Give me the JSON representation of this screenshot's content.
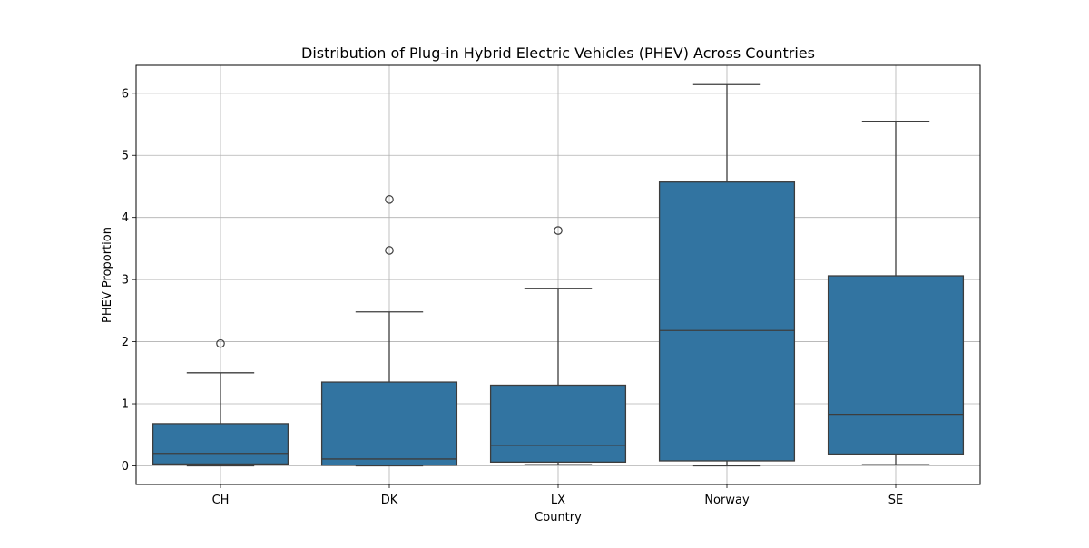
{
  "chart_data": {
    "type": "box",
    "title": "Distribution of Plug-in Hybrid Electric Vehicles (PHEV) Across Countries",
    "xlabel": "Country",
    "ylabel": "PHEV Proportion",
    "categories": [
      "CH",
      "DK",
      "LX",
      "Norway",
      "SE"
    ],
    "ylim": [
      -0.3,
      6.45
    ],
    "yticks": [
      0,
      1,
      2,
      3,
      4,
      5,
      6
    ],
    "grid": true,
    "box_color": "#3274a1",
    "edge_color": "#3d3d3d",
    "boxes": [
      {
        "category": "CH",
        "whisker_low": 0.0,
        "q1": 0.03,
        "median": 0.2,
        "q3": 0.68,
        "whisker_high": 1.5,
        "outliers": [
          1.97
        ]
      },
      {
        "category": "DK",
        "whisker_low": 0.0,
        "q1": 0.01,
        "median": 0.11,
        "q3": 1.35,
        "whisker_high": 2.48,
        "outliers": [
          3.47,
          4.29
        ]
      },
      {
        "category": "LX",
        "whisker_low": 0.02,
        "q1": 0.06,
        "median": 0.33,
        "q3": 1.3,
        "whisker_high": 2.86,
        "outliers": [
          3.79
        ]
      },
      {
        "category": "Norway",
        "whisker_low": 0.0,
        "q1": 0.08,
        "median": 2.18,
        "q3": 4.57,
        "whisker_high": 6.14,
        "outliers": []
      },
      {
        "category": "SE",
        "whisker_low": 0.02,
        "q1": 0.19,
        "median": 0.83,
        "q3": 3.06,
        "whisker_high": 5.55,
        "outliers": []
      }
    ]
  }
}
